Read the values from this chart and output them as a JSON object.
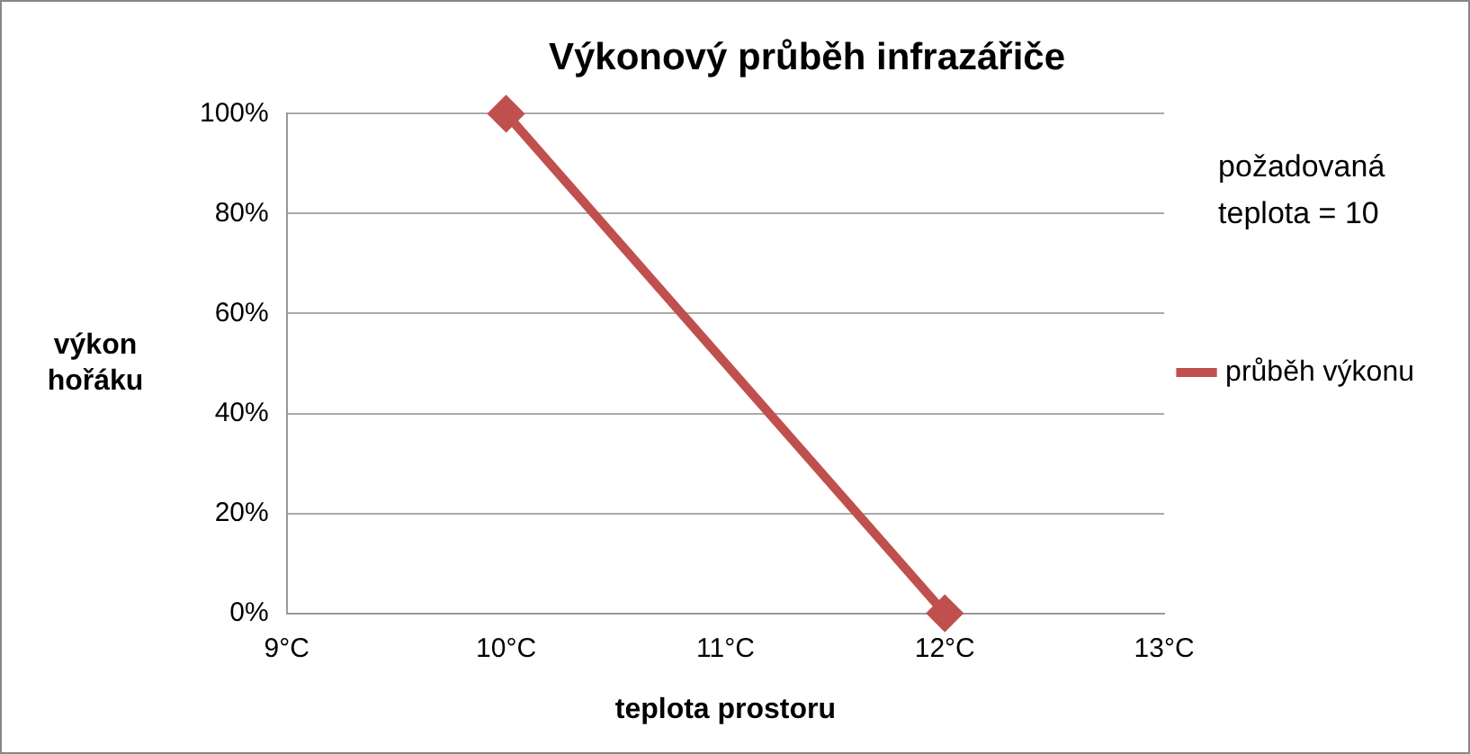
{
  "chart_data": {
    "type": "line",
    "title": "Výkonový průběh infrazářiče",
    "xlabel": "teplota prostoru",
    "ylabel": "výkon hořáku",
    "annotations": [
      "požadovaná teplota = 10"
    ],
    "x": [
      10,
      12
    ],
    "series": [
      {
        "name": "průběh výkonu",
        "color": "#c0504d",
        "values": [
          100,
          0
        ]
      }
    ],
    "xlim": [
      9,
      13
    ],
    "xticks": [
      {
        "value": 9,
        "label": "9°C"
      },
      {
        "value": 10,
        "label": "10°C"
      },
      {
        "value": 11,
        "label": "11°C"
      },
      {
        "value": 12,
        "label": "12°C"
      },
      {
        "value": 13,
        "label": "13°C"
      }
    ],
    "ylim": [
      0,
      100
    ],
    "yticks": [
      {
        "value": 0,
        "label": "0%"
      },
      {
        "value": 20,
        "label": "20%"
      },
      {
        "value": 40,
        "label": "40%"
      },
      {
        "value": 60,
        "label": "60%"
      },
      {
        "value": 80,
        "label": "80%"
      },
      {
        "value": 100,
        "label": "100%"
      }
    ],
    "grid": "y",
    "legend": "right",
    "marker": "diamond",
    "line_style": "solid"
  }
}
